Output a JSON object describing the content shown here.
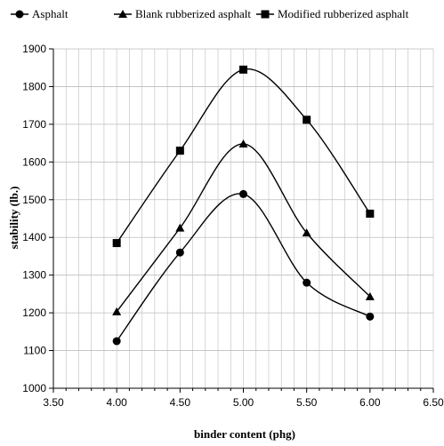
{
  "chart_data": {
    "type": "line",
    "title": "",
    "xlabel": "binder  content  (phg)",
    "ylabel": "stability  (lb.)",
    "xlim": [
      3.5,
      6.5
    ],
    "ylim": [
      1000,
      1900
    ],
    "x_ticks": [
      "3.50",
      "4.00",
      "4.50",
      "5.00",
      "5.50",
      "6.00",
      "6.50"
    ],
    "y_ticks": [
      "1000",
      "1100",
      "1200",
      "1300",
      "1400",
      "1500",
      "1600",
      "1700",
      "1800",
      "1900"
    ],
    "grid": true,
    "legend_position": "top",
    "x": [
      4.0,
      4.5,
      5.0,
      5.5,
      6.0
    ],
    "series": [
      {
        "name": "Asphalt",
        "marker": "circle",
        "values": [
          1125,
          1360,
          1515,
          1280,
          1190
        ]
      },
      {
        "name": "Blank rubberized asphalt",
        "marker": "triangle",
        "values": [
          1203,
          1425,
          1648,
          1412,
          1243
        ]
      },
      {
        "name": "Modified rubberized asphalt",
        "marker": "square",
        "values": [
          1385,
          1630,
          1845,
          1712,
          1463
        ]
      }
    ]
  }
}
